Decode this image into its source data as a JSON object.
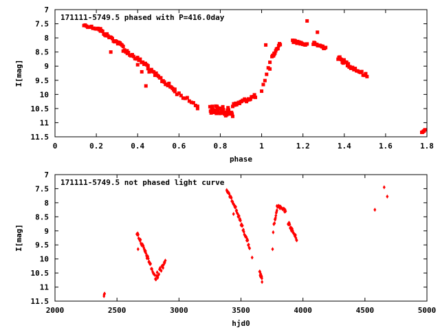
{
  "chart_data": [
    {
      "type": "scatter",
      "title": "171111-5749.5 phased with P=416.0day",
      "xlabel": "phase",
      "ylabel": "I[mag]",
      "xlim": [
        0,
        1.8
      ],
      "ylim": [
        7,
        11.5
      ],
      "y_inverted": true,
      "grid": false,
      "marker_color": "#ff0000",
      "xticks": [
        "0",
        "0.2",
        "0.4",
        "0.6",
        "0.8",
        "1",
        "1.2",
        "1.4",
        "1.6",
        "1.8"
      ],
      "yticks": [
        "7",
        "7.5",
        "8",
        "8.5",
        "9",
        "9.5",
        "10",
        "10.5",
        "11",
        "11.5"
      ],
      "segments": [
        {
          "x0": 0.14,
          "x1": 0.22,
          "y0": 7.55,
          "y1": 7.7,
          "n": 14,
          "spread": 0.04
        },
        {
          "x0": 0.22,
          "x1": 0.33,
          "y0": 7.75,
          "y1": 8.3,
          "n": 22,
          "spread": 0.06
        },
        {
          "x0": 0.33,
          "x1": 0.45,
          "y0": 8.4,
          "y1": 9.0,
          "n": 20,
          "spread": 0.07
        },
        {
          "x0": 0.45,
          "x1": 0.58,
          "y0": 9.1,
          "y1": 9.85,
          "n": 24,
          "spread": 0.08
        },
        {
          "x0": 0.58,
          "x1": 0.69,
          "y0": 9.9,
          "y1": 10.4,
          "n": 12,
          "spread": 0.06
        },
        {
          "x0": 0.75,
          "x1": 0.86,
          "y0": 10.5,
          "y1": 10.65,
          "n": 40,
          "spread": 0.15
        },
        {
          "x0": 0.86,
          "x1": 0.97,
          "y0": 10.4,
          "y1": 10.05,
          "n": 24,
          "spread": 0.07
        },
        {
          "x0": 1.0,
          "x1": 1.04,
          "y0": 9.9,
          "y1": 8.9,
          "n": 6,
          "spread": 0.05
        },
        {
          "x0": 1.05,
          "x1": 1.09,
          "y0": 8.7,
          "y1": 8.2,
          "n": 12,
          "spread": 0.05
        },
        {
          "x0": 1.15,
          "x1": 1.22,
          "y0": 8.1,
          "y1": 8.25,
          "n": 18,
          "spread": 0.05
        },
        {
          "x0": 1.25,
          "x1": 1.31,
          "y0": 8.2,
          "y1": 8.35,
          "n": 18,
          "spread": 0.05
        },
        {
          "x0": 1.37,
          "x1": 1.44,
          "y0": 8.7,
          "y1": 9.05,
          "n": 18,
          "spread": 0.07
        },
        {
          "x0": 1.44,
          "x1": 1.51,
          "y0": 9.05,
          "y1": 9.35,
          "n": 12,
          "spread": 0.06
        },
        {
          "x0": 1.775,
          "x1": 1.79,
          "y0": 11.35,
          "y1": 11.25,
          "n": 5,
          "spread": 0.02
        }
      ],
      "points": [
        {
          "x": 0.27,
          "y": 8.5
        },
        {
          "x": 0.4,
          "y": 8.95
        },
        {
          "x": 0.44,
          "y": 9.7
        },
        {
          "x": 0.42,
          "y": 9.2
        },
        {
          "x": 0.35,
          "y": 8.55
        },
        {
          "x": 0.69,
          "y": 10.5
        },
        {
          "x": 1.02,
          "y": 8.25
        },
        {
          "x": 1.22,
          "y": 7.4
        },
        {
          "x": 1.27,
          "y": 7.8
        },
        {
          "x": 1.06,
          "y": 8.55
        },
        {
          "x": 1.04,
          "y": 9.1
        }
      ]
    },
    {
      "type": "scatter",
      "title": "171111-5749.5 not phased light curve",
      "xlabel": "hjd0",
      "ylabel": "I[mag]",
      "xlim": [
        2000,
        5000
      ],
      "ylim": [
        7,
        11.5
      ],
      "y_inverted": true,
      "grid": false,
      "marker_color": "#ff0000",
      "xticks": [
        "2000",
        "2500",
        "3000",
        "3500",
        "4000",
        "4500",
        "5000"
      ],
      "yticks": [
        "7",
        "7.5",
        "8",
        "8.5",
        "9",
        "9.5",
        "10",
        "10.5",
        "11",
        "11.5"
      ],
      "segments": [
        {
          "x0": 2395,
          "x1": 2400,
          "y0": 11.3,
          "y1": 11.25,
          "n": 4,
          "spread": 0.03
        },
        {
          "x0": 2660,
          "x1": 2760,
          "y0": 9.05,
          "y1": 10.1,
          "n": 28,
          "spread": 0.08
        },
        {
          "x0": 2760,
          "x1": 2810,
          "y0": 10.1,
          "y1": 10.7,
          "n": 10,
          "spread": 0.08
        },
        {
          "x0": 2810,
          "x1": 2890,
          "y0": 10.7,
          "y1": 10.05,
          "n": 18,
          "spread": 0.12
        },
        {
          "x0": 3385,
          "x1": 3450,
          "y0": 7.55,
          "y1": 8.1,
          "n": 20,
          "spread": 0.05
        },
        {
          "x0": 3450,
          "x1": 3570,
          "y0": 8.1,
          "y1": 9.6,
          "n": 32,
          "spread": 0.07
        },
        {
          "x0": 3650,
          "x1": 3670,
          "y0": 10.5,
          "y1": 10.75,
          "n": 14,
          "spread": 0.1
        },
        {
          "x0": 3765,
          "x1": 3790,
          "y0": 8.8,
          "y1": 8.3,
          "n": 10,
          "spread": 0.05
        },
        {
          "x0": 3790,
          "x1": 3860,
          "y0": 8.1,
          "y1": 8.3,
          "n": 18,
          "spread": 0.05
        },
        {
          "x0": 3880,
          "x1": 3950,
          "y0": 8.7,
          "y1": 9.3,
          "n": 22,
          "spread": 0.07
        }
      ],
      "points": [
        {
          "x": 2670,
          "y": 9.65
        },
        {
          "x": 3480,
          "y": 8.5
        },
        {
          "x": 3590,
          "y": 9.95
        },
        {
          "x": 3760,
          "y": 9.05
        },
        {
          "x": 3755,
          "y": 9.65
        },
        {
          "x": 4580,
          "y": 8.25
        },
        {
          "x": 4655,
          "y": 7.45
        },
        {
          "x": 4680,
          "y": 7.78
        },
        {
          "x": 3440,
          "y": 8.4
        }
      ]
    }
  ]
}
